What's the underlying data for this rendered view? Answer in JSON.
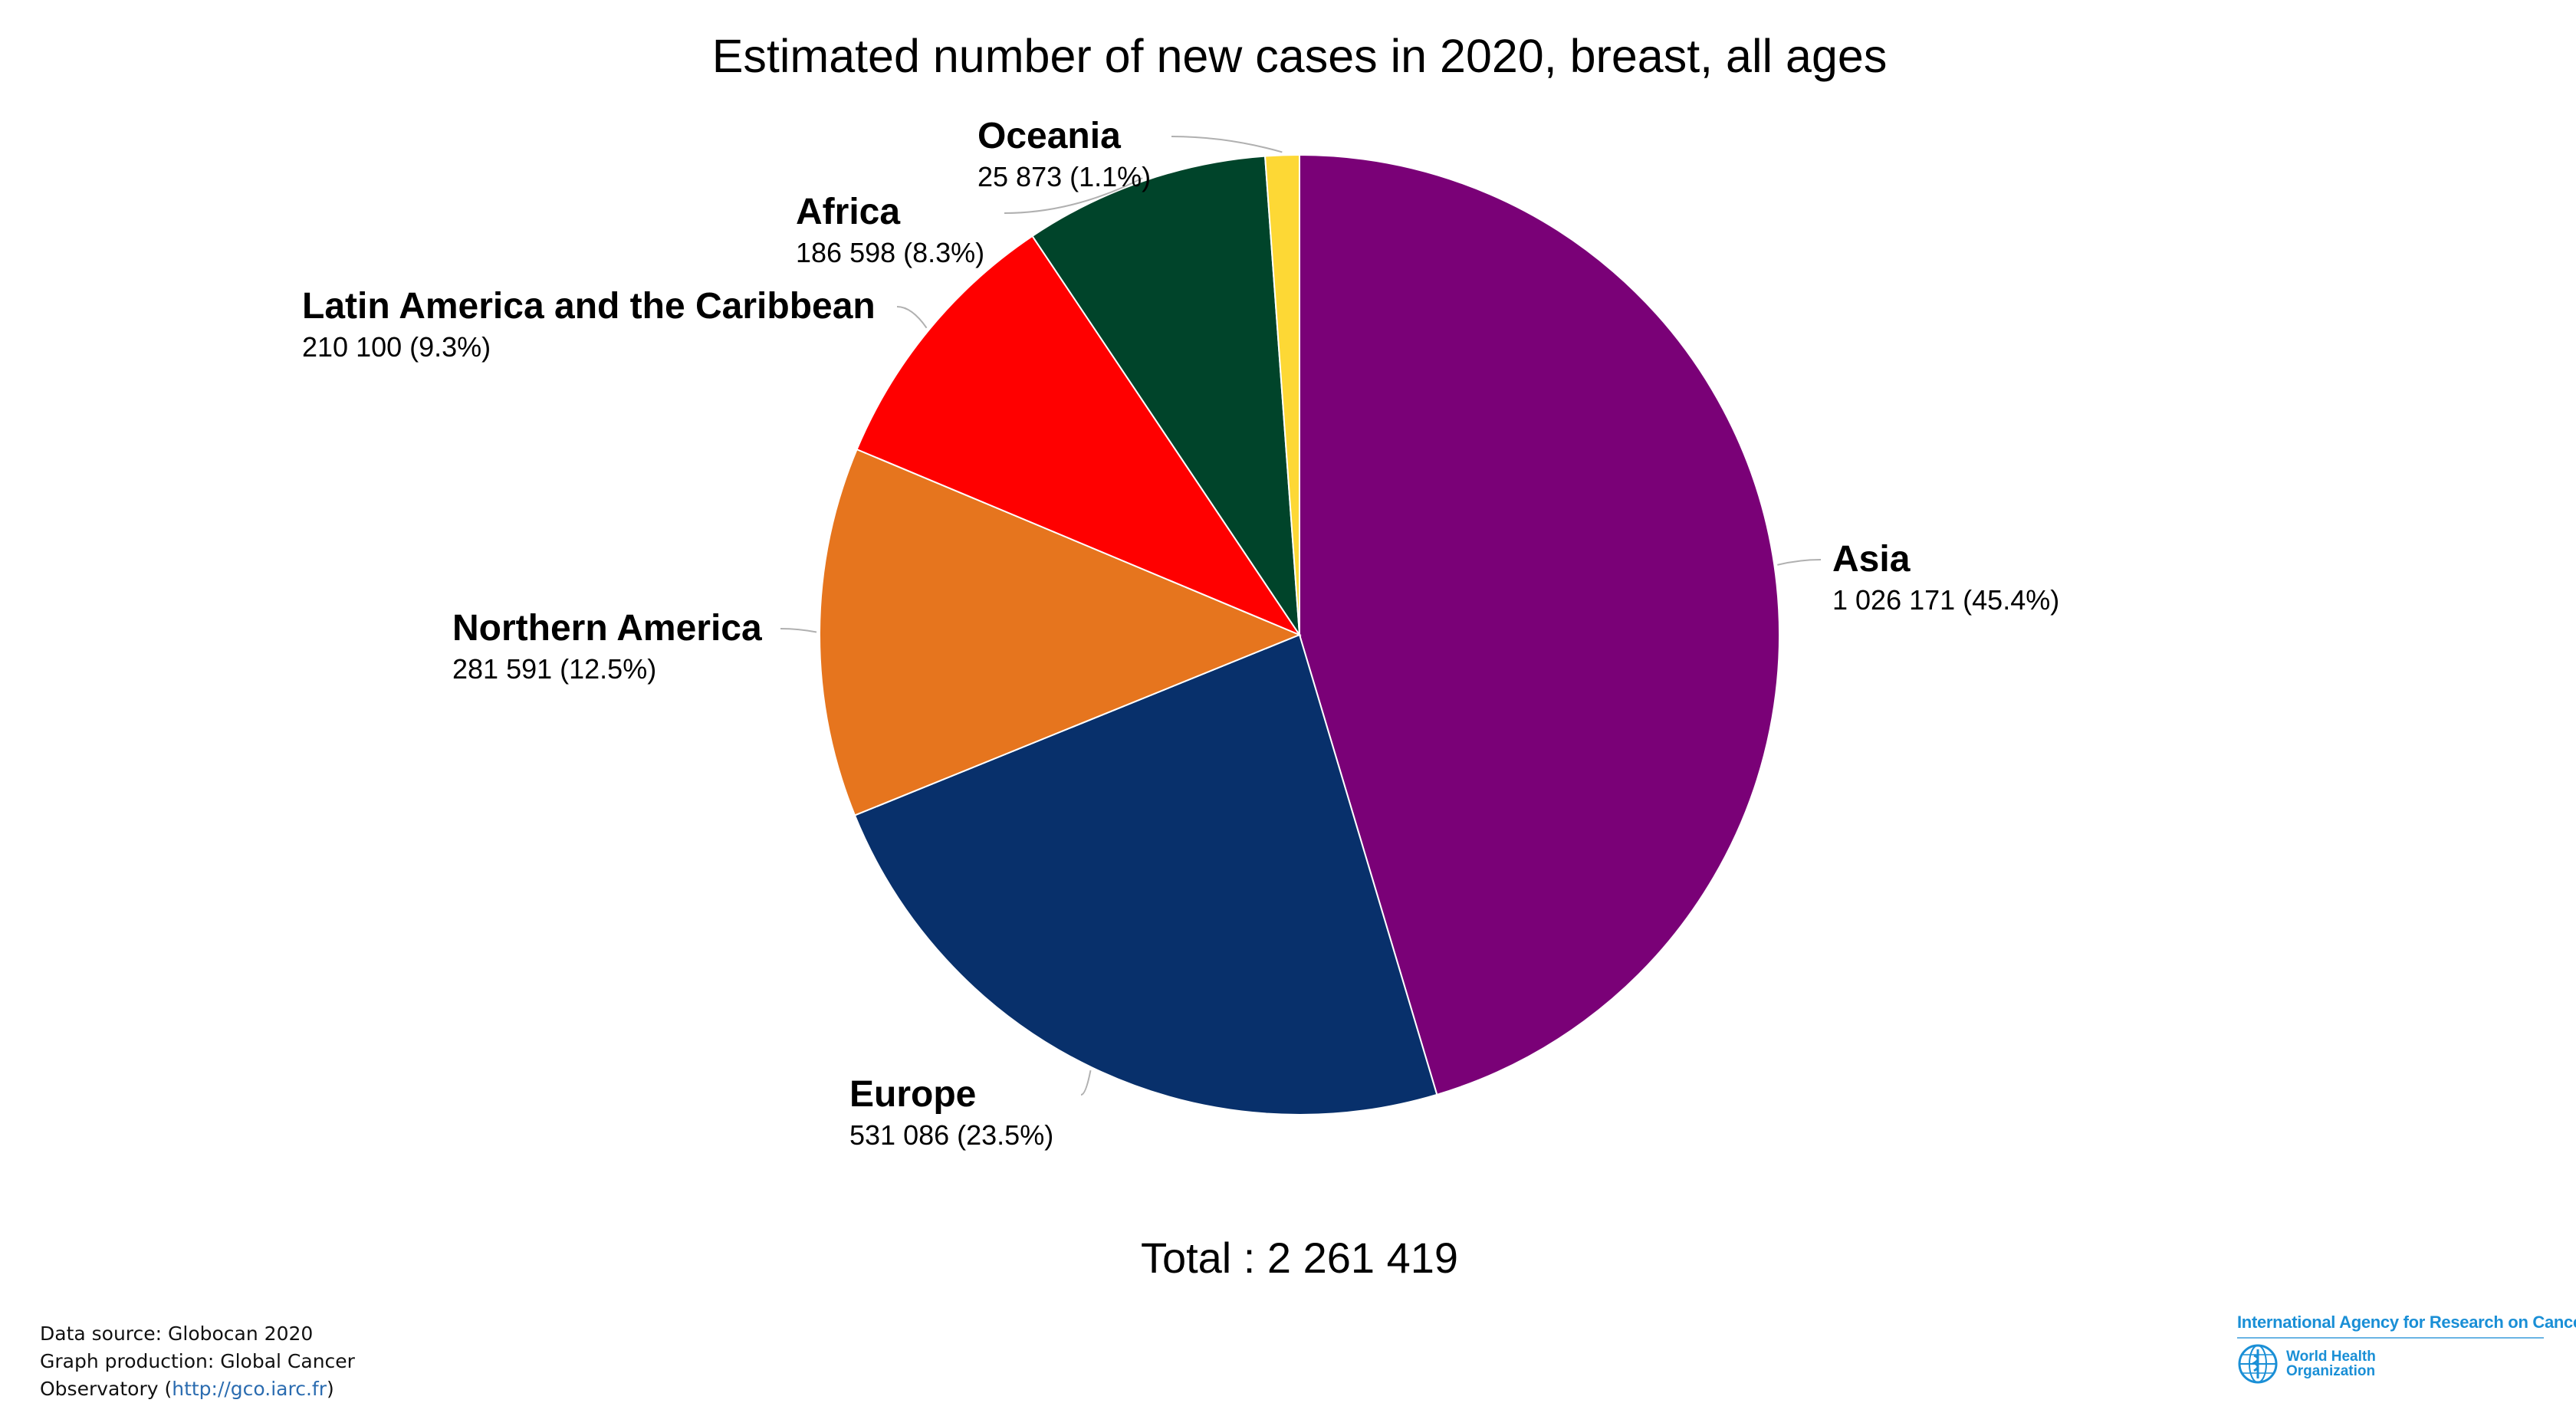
{
  "chart_data": {
    "type": "pie",
    "title": "Estimated number of new cases in 2020, breast, all ages",
    "total_label": "Total : 2 261 419",
    "total": 2261419,
    "slices": [
      {
        "name": "Asia",
        "value": 1026171,
        "value_label": "1 026 171 (45.4%)",
        "percent": 45.4,
        "color": "#7a0177"
      },
      {
        "name": "Europe",
        "value": 531086,
        "value_label": "531 086 (23.5%)",
        "percent": 23.5,
        "color": "#08306b"
      },
      {
        "name": "Northern America",
        "value": 281591,
        "value_label": "281 591 (12.5%)",
        "percent": 12.5,
        "color": "#e6751e"
      },
      {
        "name": "Latin America and the Caribbean",
        "value": 210100,
        "value_label": "210 100 (9.3%)",
        "percent": 9.3,
        "color": "#ff0000"
      },
      {
        "name": "Africa",
        "value": 186598,
        "value_label": "186 598 (8.3%)",
        "percent": 8.3,
        "color": "#00442a"
      },
      {
        "name": "Oceania",
        "value": 25873,
        "value_label": "25 873 (1.1%)",
        "percent": 1.1,
        "color": "#fdd835"
      }
    ]
  },
  "footer": {
    "line1": "Data source: Globocan 2020",
    "line2": "Graph production: Global Cancer",
    "line3_prefix": "Observatory (",
    "link": "http://gco.iarc.fr",
    "line3_suffix": ")"
  },
  "logo": {
    "iarc": "International Agency for Research on Cancer",
    "who_line1": "World Health",
    "who_line2": "Organization"
  }
}
